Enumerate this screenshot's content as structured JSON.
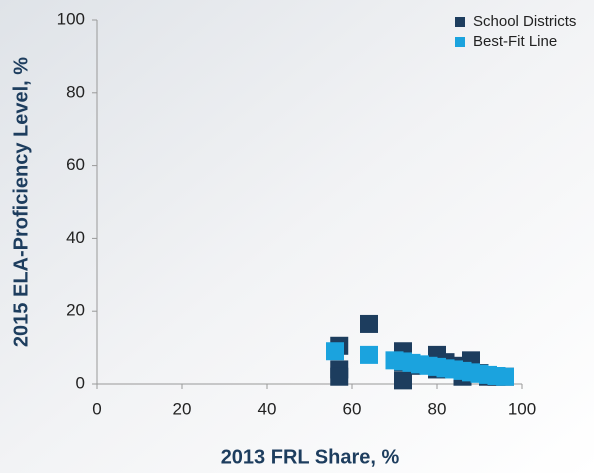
{
  "chart_data": {
    "type": "scatter",
    "x_label": "2013 FRL Share, %",
    "y_label": "2015 ELA-Proficiency Level, %",
    "xlim": [
      0,
      100
    ],
    "ylim": [
      0,
      100
    ],
    "xticks": [
      0,
      20,
      40,
      60,
      80,
      100
    ],
    "yticks": [
      0,
      20,
      40,
      60,
      80,
      100
    ],
    "legend": "upper right",
    "series": [
      {
        "name": "School Districts",
        "color": "#1d3d5e",
        "x": [
          57,
          57,
          57,
          64,
          72,
          72,
          72,
          74,
          80,
          80,
          82,
          85,
          86,
          88,
          88,
          90,
          92,
          94,
          96
        ],
        "values": [
          10.5,
          4,
          2,
          16.5,
          9,
          1,
          6,
          5,
          8,
          4,
          6,
          5,
          2,
          6.5,
          3,
          3,
          2,
          2,
          2
        ]
      },
      {
        "name": "Best-Fit Line",
        "color": "#1ba3de",
        "x": [
          56,
          64,
          70,
          72,
          74,
          76,
          78,
          80,
          82,
          84,
          86,
          88,
          90,
          92,
          94,
          96
        ],
        "values": [
          9,
          8,
          6.5,
          6.2,
          5.8,
          5.4,
          5,
          4.7,
          4.3,
          4,
          3.6,
          3.2,
          2.8,
          2.5,
          2.2,
          2
        ]
      }
    ]
  }
}
